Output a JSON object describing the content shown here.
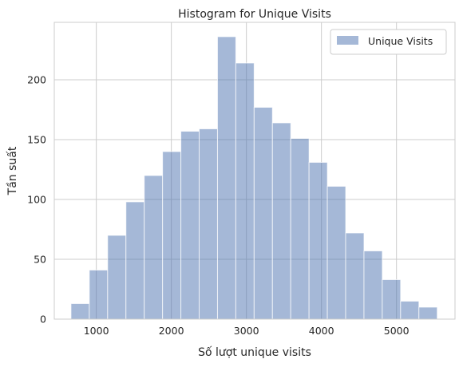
{
  "chart_data": {
    "type": "bar",
    "subtype": "histogram",
    "title": "Histogram for Unique Visits",
    "xlabel": "Số lượt unique visits",
    "ylabel": "Tần suất",
    "xlim": [
      440,
      5780
    ],
    "ylim": [
      0,
      248
    ],
    "xticks": [
      1000,
      2000,
      3000,
      4000,
      5000
    ],
    "yticks": [
      0,
      50,
      100,
      150,
      200
    ],
    "grid": true,
    "legend_position": "top-right",
    "series": [
      {
        "name": "Unique Visits",
        "color": "#4c72b0",
        "opacity": 0.5,
        "bins": [
          [
            663,
            907,
            13
          ],
          [
            907,
            1151,
            41
          ],
          [
            1151,
            1395,
            70
          ],
          [
            1395,
            1639,
            98
          ],
          [
            1639,
            1883,
            120
          ],
          [
            1883,
            2127,
            140
          ],
          [
            2127,
            2371,
            157
          ],
          [
            2371,
            2615,
            159
          ],
          [
            2615,
            2859,
            236
          ],
          [
            2859,
            3103,
            214
          ],
          [
            3103,
            3347,
            177
          ],
          [
            3347,
            3591,
            164
          ],
          [
            3591,
            3835,
            151
          ],
          [
            3835,
            4079,
            131
          ],
          [
            4079,
            4323,
            111
          ],
          [
            4323,
            4567,
            72
          ],
          [
            4567,
            4811,
            57
          ],
          [
            4811,
            5055,
            33
          ],
          [
            5055,
            5299,
            15
          ],
          [
            5299,
            5543,
            10
          ]
        ]
      }
    ]
  }
}
